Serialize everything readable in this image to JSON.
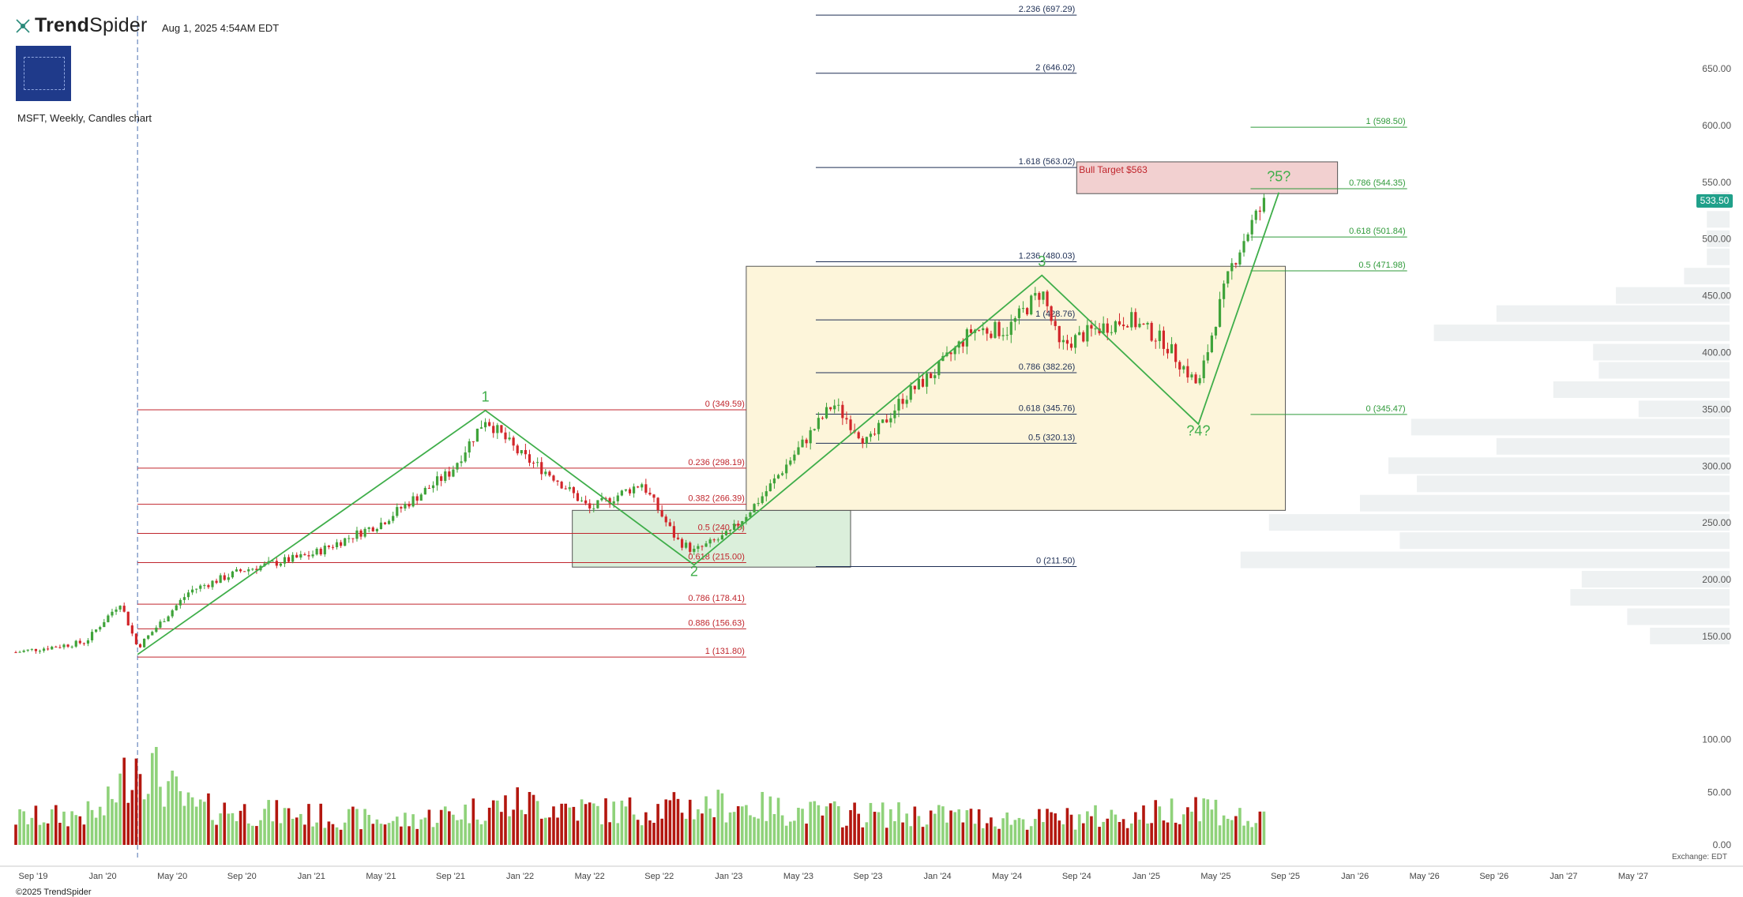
{
  "app": {
    "brand_bold": "Trend",
    "brand_light": "Spider",
    "timestamp": "Aug 1, 2025 4:54AM EDT",
    "subtitle": "MSFT, Weekly, Candles chart",
    "copyright": "©2025 TrendSpider",
    "exchange": "Exchange: EDT",
    "last_price": "533.50",
    "icons": [
      "trendspider-logo-icon",
      "publisher-logo"
    ]
  },
  "chart_data": {
    "type": "candlestick",
    "symbol": "MSFT",
    "timeframe": "Weekly",
    "x_range": [
      "2019-08",
      "2027-06"
    ],
    "x_ticks": [
      {
        "label": "Sep '19",
        "date": "2019-09"
      },
      {
        "label": "Jan '20",
        "date": "2020-01"
      },
      {
        "label": "May '20",
        "date": "2020-05"
      },
      {
        "label": "Sep '20",
        "date": "2020-09"
      },
      {
        "label": "Jan '21",
        "date": "2021-01"
      },
      {
        "label": "May '21",
        "date": "2021-05"
      },
      {
        "label": "Sep '21",
        "date": "2021-09"
      },
      {
        "label": "Jan '22",
        "date": "2022-01"
      },
      {
        "label": "May '22",
        "date": "2022-05"
      },
      {
        "label": "Sep '22",
        "date": "2022-09"
      },
      {
        "label": "Jan '23",
        "date": "2023-01"
      },
      {
        "label": "May '23",
        "date": "2023-05"
      },
      {
        "label": "Sep '23",
        "date": "2023-09"
      },
      {
        "label": "Jan '24",
        "date": "2024-01"
      },
      {
        "label": "May '24",
        "date": "2024-05"
      },
      {
        "label": "Sep '24",
        "date": "2024-09"
      },
      {
        "label": "Jan '25",
        "date": "2025-01"
      },
      {
        "label": "May '25",
        "date": "2025-05"
      },
      {
        "label": "Sep '25",
        "date": "2025-09"
      },
      {
        "label": "Jan '26",
        "date": "2026-01"
      },
      {
        "label": "May '26",
        "date": "2026-05"
      },
      {
        "label": "Sep '26",
        "date": "2026-09"
      },
      {
        "label": "Jan '27",
        "date": "2027-01"
      },
      {
        "label": "May '27",
        "date": "2027-05"
      }
    ],
    "price_axis": {
      "ylim": [
        95,
        705
      ],
      "ticks": [
        150,
        200,
        250,
        300,
        350,
        400,
        450,
        500,
        550,
        600,
        650
      ],
      "tick_labels": [
        "150.00",
        "200.00",
        "250.00",
        "300.00",
        "350.00",
        "400.00",
        "450.00",
        "500.00",
        "550.00",
        "600.00",
        "650.00"
      ]
    },
    "volume_axis": {
      "ylim": [
        0,
        120
      ],
      "ticks": [
        0,
        50,
        100
      ],
      "tick_labels": [
        "0.00",
        "50.00",
        "100.00"
      ]
    },
    "price_path": [
      [
        "2019-08",
        136
      ],
      [
        "2019-12",
        145
      ],
      [
        "2020-02",
        180
      ],
      [
        "2020-03",
        140
      ],
      [
        "2020-06",
        190
      ],
      [
        "2020-09",
        208
      ],
      [
        "2021-01",
        222
      ],
      [
        "2021-05",
        250
      ],
      [
        "2021-09",
        295
      ],
      [
        "2021-11",
        342
      ],
      [
        "2022-01",
        310
      ],
      [
        "2022-03",
        290
      ],
      [
        "2022-05",
        262
      ],
      [
        "2022-08",
        285
      ],
      [
        "2022-10",
        235
      ],
      [
        "2022-11",
        225
      ],
      [
        "2023-01",
        240
      ],
      [
        "2023-03",
        275
      ],
      [
        "2023-06",
        335
      ],
      [
        "2023-07",
        355
      ],
      [
        "2023-09",
        320
      ],
      [
        "2023-11",
        360
      ],
      [
        "2024-01",
        385
      ],
      [
        "2024-03",
        420
      ],
      [
        "2024-05",
        420
      ],
      [
        "2024-07",
        455
      ],
      [
        "2024-08",
        405
      ],
      [
        "2024-10",
        420
      ],
      [
        "2024-12",
        430
      ],
      [
        "2025-02",
        410
      ],
      [
        "2025-04",
        370
      ],
      [
        "2025-05",
        430
      ],
      [
        "2025-06",
        480
      ],
      [
        "2025-07",
        512
      ],
      [
        "2025-07-28",
        533.5
      ]
    ],
    "volume_path": [
      [
        "2019-08",
        25
      ],
      [
        "2020-01",
        30
      ],
      [
        "2020-03",
        85
      ],
      [
        "2020-06",
        35
      ],
      [
        "2021-01",
        28
      ],
      [
        "2021-06",
        22
      ],
      [
        "2022-01",
        40
      ],
      [
        "2022-06",
        32
      ],
      [
        "2023-01",
        38
      ],
      [
        "2023-06",
        30
      ],
      [
        "2024-01",
        28
      ],
      [
        "2024-06",
        24
      ],
      [
        "2025-01",
        28
      ],
      [
        "2025-04",
        40
      ],
      [
        "2025-07",
        22
      ]
    ],
    "last_price": 533.5,
    "fib_retracement_red": {
      "x_range": [
        "2020-03",
        "2023-02"
      ],
      "levels": [
        {
          "ratio": "0",
          "price": 349.59,
          "label": "0 (349.59)"
        },
        {
          "ratio": "0.236",
          "price": 298.19,
          "label": "0.236 (298.19)"
        },
        {
          "ratio": "0.382",
          "price": 266.39,
          "label": "0.382 (266.39)"
        },
        {
          "ratio": "0.5",
          "price": 240.7,
          "label": "0.5 (240.70)"
        },
        {
          "ratio": "0.618",
          "price": 215.0,
          "label": "0.618 (215.00)"
        },
        {
          "ratio": "0.786",
          "price": 178.41,
          "label": "0.786 (178.41)"
        },
        {
          "ratio": "0.886",
          "price": 156.63,
          "label": "0.886 (156.63)"
        },
        {
          "ratio": "1",
          "price": 131.8,
          "label": "1 (131.80)"
        }
      ]
    },
    "fib_extension_navy": {
      "x_range": [
        "2023-06",
        "2024-09"
      ],
      "levels": [
        {
          "price": 697.29,
          "label": "2.236 (697.29)"
        },
        {
          "price": 646.02,
          "label": "2 (646.02)"
        },
        {
          "price": 563.02,
          "label": "1.618 (563.02)"
        },
        {
          "price": 480.03,
          "label": "1.236 (480.03)"
        },
        {
          "price": 428.76,
          "label": "1 (428.76)"
        },
        {
          "price": 382.26,
          "label": "0.786 (382.26)"
        },
        {
          "price": 345.76,
          "label": "0.618 (345.76)"
        },
        {
          "price": 320.13,
          "label": "0.5 (320.13)"
        },
        {
          "price": 211.5,
          "label": "0 (211.50)"
        }
      ]
    },
    "fib_extension_green": {
      "x_range": [
        "2025-07",
        "2026-04"
      ],
      "levels": [
        {
          "price": 598.5,
          "label": "1 (598.50)"
        },
        {
          "price": 544.35,
          "label": "0.786 (544.35)"
        },
        {
          "price": 501.84,
          "label": "0.618 (501.84)"
        },
        {
          "price": 471.98,
          "label": "0.5 (471.98)"
        },
        {
          "price": 345.47,
          "label": "0 (345.47)"
        }
      ]
    },
    "zones": [
      {
        "name": "green-support-zone",
        "x_range": [
          "2022-04",
          "2023-08"
        ],
        "y_range": [
          211,
          261
        ],
        "color": "#d5ecd5"
      },
      {
        "name": "yellow-range-zone",
        "x_range": [
          "2023-02",
          "2025-09"
        ],
        "y_range": [
          261,
          476
        ],
        "color": "#fdf3d3"
      },
      {
        "name": "bull-target-zone",
        "x_range": [
          "2024-09",
          "2025-12"
        ],
        "y_range": [
          540,
          568
        ],
        "color": "#f0c8c8",
        "label": "Bull Target $563"
      }
    ],
    "wave_lines": [
      {
        "points": [
          [
            "2020-03",
            134
          ],
          [
            "2021-11",
            349
          ],
          [
            "2022-11",
            213
          ],
          [
            "2024-07",
            468
          ],
          [
            "2025-04",
            337
          ],
          [
            "2025-08-20",
            541
          ]
        ]
      }
    ],
    "wave_labels": [
      {
        "text": "1",
        "date": "2021-11",
        "price": 357
      },
      {
        "text": "2",
        "date": "2022-11",
        "price": 203
      },
      {
        "text": "3",
        "date": "2024-07",
        "price": 476
      },
      {
        "text": "?4?",
        "date": "2025-04",
        "price": 327
      },
      {
        "text": "?5?",
        "date": "2025-08-20",
        "price": 551
      }
    ],
    "volume_profile": [
      {
        "price": 150,
        "value": 0.14
      },
      {
        "price": 167,
        "value": 0.18
      },
      {
        "price": 184,
        "value": 0.28
      },
      {
        "price": 200,
        "value": 0.26
      },
      {
        "price": 217,
        "value": 0.86
      },
      {
        "price": 234,
        "value": 0.58
      },
      {
        "price": 250,
        "value": 0.81
      },
      {
        "price": 267,
        "value": 0.65
      },
      {
        "price": 284,
        "value": 0.55
      },
      {
        "price": 300,
        "value": 0.6
      },
      {
        "price": 317,
        "value": 0.41
      },
      {
        "price": 334,
        "value": 0.56
      },
      {
        "price": 350,
        "value": 0.16
      },
      {
        "price": 367,
        "value": 0.31
      },
      {
        "price": 384,
        "value": 0.23
      },
      {
        "price": 400,
        "value": 0.24
      },
      {
        "price": 417,
        "value": 0.52
      },
      {
        "price": 434,
        "value": 0.41
      },
      {
        "price": 450,
        "value": 0.2
      },
      {
        "price": 467,
        "value": 0.08
      },
      {
        "price": 484,
        "value": 0.04
      },
      {
        "price": 500,
        "value": 0.04
      },
      {
        "price": 517,
        "value": 0.04
      },
      {
        "price": 534,
        "value": 0.03
      }
    ],
    "time_marker": "2020-03"
  }
}
